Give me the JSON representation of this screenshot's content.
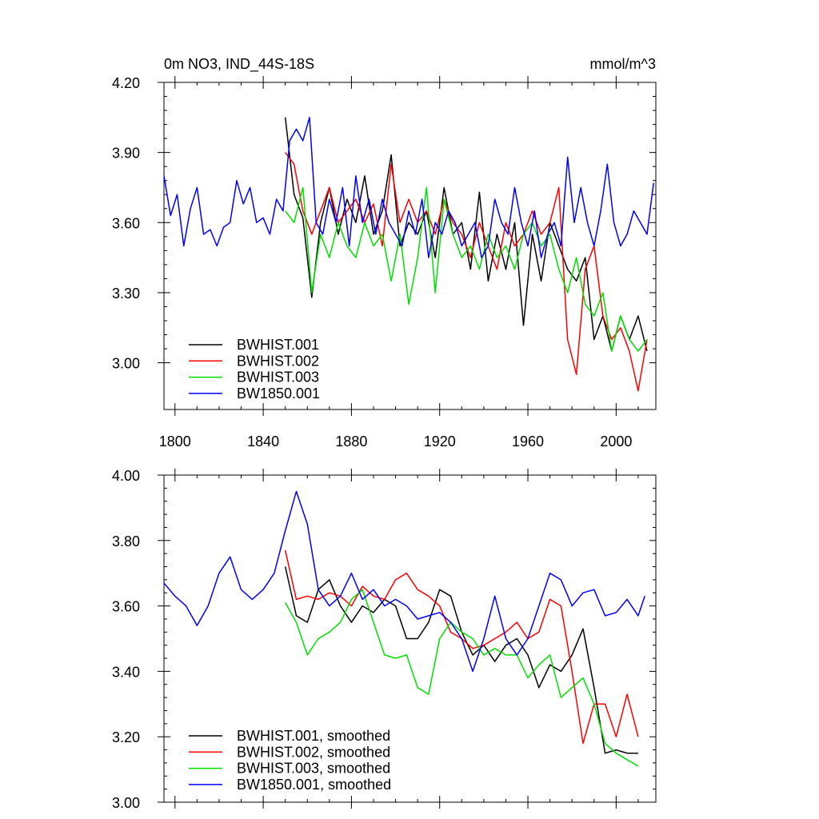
{
  "colors": {
    "BWHIST.001": "#000000",
    "BWHIST.002": "#ff0000",
    "BWHIST.003": "#00e000",
    "BW1850.001": "#0000ff"
  },
  "chart_data": [
    {
      "type": "line",
      "title": "0m NO3, IND_44S-18S",
      "units": "mmol/m^3",
      "xlim": [
        1795,
        2018
      ],
      "ylim": [
        2.8,
        4.2
      ],
      "xticks": [
        1800,
        1840,
        1880,
        1920,
        1960,
        2000
      ],
      "xtick_labels": [
        "1800",
        "1840",
        "1880",
        "1920",
        "1960",
        "2000"
      ],
      "yticks": [
        3.0,
        3.3,
        3.6,
        3.9,
        4.2
      ],
      "ytick_labels": [
        "3.00",
        "3.30",
        "3.60",
        "3.90",
        "4.20"
      ],
      "legend_position": "bottom-left",
      "series": [
        {
          "name": "BWHIST.001",
          "x": [
            1850,
            1854,
            1858,
            1862,
            1866,
            1870,
            1874,
            1878,
            1882,
            1886,
            1890,
            1894,
            1898,
            1902,
            1906,
            1910,
            1914,
            1918,
            1922,
            1926,
            1930,
            1934,
            1938,
            1942,
            1946,
            1950,
            1954,
            1958,
            1962,
            1966,
            1970,
            1974,
            1978,
            1982,
            1986,
            1990,
            1994,
            1998,
            2002,
            2006,
            2010,
            2014
          ],
          "y": [
            4.05,
            3.72,
            3.62,
            3.28,
            3.6,
            3.75,
            3.55,
            3.7,
            3.6,
            3.8,
            3.55,
            3.65,
            3.89,
            3.5,
            3.6,
            3.55,
            3.65,
            3.45,
            3.75,
            3.55,
            3.6,
            3.4,
            3.73,
            3.35,
            3.55,
            3.4,
            3.6,
            3.16,
            3.55,
            3.35,
            3.6,
            3.5,
            3.4,
            3.35,
            3.45,
            3.1,
            3.2,
            3.05,
            3.2,
            3.1,
            3.2,
            3.05
          ]
        },
        {
          "name": "BWHIST.002",
          "x": [
            1850,
            1854,
            1858,
            1862,
            1866,
            1870,
            1874,
            1878,
            1882,
            1886,
            1890,
            1894,
            1898,
            1902,
            1906,
            1910,
            1914,
            1918,
            1922,
            1926,
            1930,
            1934,
            1938,
            1942,
            1946,
            1950,
            1954,
            1958,
            1962,
            1966,
            1970,
            1974,
            1978,
            1982,
            1986,
            1990,
            1994,
            1998,
            2002,
            2006,
            2010,
            2014
          ],
          "y": [
            3.9,
            3.85,
            3.65,
            3.55,
            3.65,
            3.75,
            3.6,
            3.65,
            3.7,
            3.6,
            3.68,
            3.5,
            3.85,
            3.6,
            3.7,
            3.6,
            3.65,
            3.55,
            3.7,
            3.6,
            3.55,
            3.45,
            3.6,
            3.5,
            3.4,
            3.6,
            3.5,
            3.55,
            3.65,
            3.55,
            3.6,
            3.75,
            3.1,
            2.95,
            3.4,
            3.5,
            3.2,
            3.1,
            3.15,
            3.05,
            2.88,
            3.1
          ]
        },
        {
          "name": "BWHIST.003",
          "x": [
            1850,
            1854,
            1858,
            1862,
            1866,
            1870,
            1874,
            1878,
            1882,
            1886,
            1890,
            1894,
            1898,
            1902,
            1906,
            1910,
            1914,
            1918,
            1922,
            1926,
            1930,
            1934,
            1938,
            1942,
            1946,
            1950,
            1954,
            1958,
            1962,
            1966,
            1970,
            1974,
            1978,
            1982,
            1986,
            1990,
            1994,
            1998,
            2002,
            2006,
            2010,
            2014
          ],
          "y": [
            3.65,
            3.6,
            3.75,
            3.3,
            3.55,
            3.45,
            3.6,
            3.5,
            3.45,
            3.6,
            3.5,
            3.55,
            3.35,
            3.55,
            3.25,
            3.45,
            3.75,
            3.3,
            3.7,
            3.55,
            3.45,
            3.5,
            3.4,
            3.55,
            3.45,
            3.5,
            3.4,
            3.55,
            3.6,
            3.5,
            3.55,
            3.4,
            3.3,
            3.45,
            3.25,
            3.2,
            3.3,
            3.05,
            3.2,
            3.1,
            3.05,
            3.1
          ]
        },
        {
          "name": "BW1850.001",
          "x": [
            1795,
            1798,
            1801,
            1804,
            1807,
            1810,
            1813,
            1816,
            1819,
            1822,
            1825,
            1828,
            1831,
            1834,
            1837,
            1840,
            1843,
            1846,
            1849,
            1852,
            1855,
            1858,
            1861,
            1864,
            1867,
            1870,
            1873,
            1876,
            1879,
            1882,
            1885,
            1888,
            1891,
            1894,
            1897,
            1900,
            1903,
            1906,
            1909,
            1912,
            1915,
            1918,
            1921,
            1924,
            1927,
            1930,
            1933,
            1936,
            1939,
            1942,
            1945,
            1948,
            1951,
            1954,
            1957,
            1960,
            1963,
            1966,
            1969,
            1972,
            1975,
            1978,
            1981,
            1984,
            1987,
            1990,
            1993,
            1996,
            1999,
            2002,
            2005,
            2008,
            2011,
            2014,
            2017
          ],
          "y": [
            3.8,
            3.63,
            3.72,
            3.5,
            3.66,
            3.75,
            3.55,
            3.57,
            3.5,
            3.58,
            3.6,
            3.78,
            3.68,
            3.75,
            3.6,
            3.62,
            3.55,
            3.7,
            3.65,
            3.95,
            4.0,
            3.95,
            4.05,
            3.6,
            3.55,
            3.7,
            3.6,
            3.75,
            3.5,
            3.8,
            3.6,
            3.7,
            3.55,
            3.7,
            3.6,
            3.55,
            3.5,
            3.65,
            3.55,
            3.7,
            3.45,
            3.6,
            3.55,
            3.65,
            3.6,
            3.5,
            3.55,
            3.6,
            3.45,
            3.5,
            3.7,
            3.6,
            3.55,
            3.75,
            3.6,
            3.5,
            3.65,
            3.45,
            3.55,
            3.6,
            3.5,
            3.88,
            3.6,
            3.75,
            3.6,
            3.5,
            3.65,
            3.85,
            3.6,
            3.5,
            3.55,
            3.65,
            3.6,
            3.55,
            3.77
          ]
        }
      ]
    },
    {
      "type": "line",
      "xlim": [
        1795,
        2018
      ],
      "ylim": [
        3.0,
        4.0
      ],
      "xticks": [
        1800,
        1840,
        1880,
        1920,
        1960,
        2000
      ],
      "yticks": [
        3.0,
        3.2,
        3.4,
        3.6,
        3.8,
        4.0
      ],
      "ytick_labels": [
        "3.00",
        "3.20",
        "3.40",
        "3.60",
        "3.80",
        "4.00"
      ],
      "legend_position": "bottom-left",
      "series": [
        {
          "name": "BWHIST.001, smoothed",
          "x": [
            1850,
            1855,
            1860,
            1865,
            1870,
            1875,
            1880,
            1885,
            1890,
            1895,
            1900,
            1905,
            1910,
            1915,
            1920,
            1925,
            1930,
            1935,
            1940,
            1945,
            1950,
            1955,
            1960,
            1965,
            1970,
            1975,
            1980,
            1985,
            1990,
            1995,
            2000,
            2005,
            2010
          ],
          "y": [
            3.72,
            3.57,
            3.55,
            3.65,
            3.68,
            3.6,
            3.55,
            3.6,
            3.58,
            3.62,
            3.6,
            3.5,
            3.5,
            3.55,
            3.65,
            3.63,
            3.52,
            3.45,
            3.48,
            3.43,
            3.48,
            3.5,
            3.45,
            3.35,
            3.42,
            3.4,
            3.45,
            3.53,
            3.35,
            3.15,
            3.16,
            3.15,
            3.15
          ]
        },
        {
          "name": "BWHIST.002, smoothed",
          "x": [
            1850,
            1855,
            1860,
            1865,
            1870,
            1875,
            1880,
            1885,
            1890,
            1895,
            1900,
            1905,
            1910,
            1915,
            1920,
            1925,
            1930,
            1935,
            1940,
            1945,
            1950,
            1955,
            1960,
            1965,
            1970,
            1975,
            1980,
            1985,
            1990,
            1995,
            2000,
            2005,
            2010
          ],
          "y": [
            3.77,
            3.62,
            3.63,
            3.62,
            3.64,
            3.63,
            3.6,
            3.66,
            3.63,
            3.62,
            3.68,
            3.7,
            3.65,
            3.63,
            3.6,
            3.52,
            3.5,
            3.47,
            3.48,
            3.5,
            3.52,
            3.55,
            3.5,
            3.52,
            3.62,
            3.6,
            3.4,
            3.18,
            3.3,
            3.3,
            3.2,
            3.33,
            3.2
          ]
        },
        {
          "name": "BWHIST.003, smoothed",
          "x": [
            1850,
            1855,
            1860,
            1865,
            1870,
            1875,
            1880,
            1885,
            1890,
            1895,
            1900,
            1905,
            1910,
            1915,
            1920,
            1925,
            1930,
            1935,
            1940,
            1945,
            1950,
            1955,
            1960,
            1965,
            1970,
            1975,
            1980,
            1985,
            1990,
            1995,
            2000,
            2005,
            2010
          ],
          "y": [
            3.61,
            3.55,
            3.45,
            3.5,
            3.52,
            3.55,
            3.62,
            3.65,
            3.55,
            3.45,
            3.44,
            3.45,
            3.35,
            3.33,
            3.5,
            3.55,
            3.52,
            3.5,
            3.45,
            3.47,
            3.45,
            3.45,
            3.38,
            3.42,
            3.45,
            3.32,
            3.35,
            3.38,
            3.3,
            3.18,
            3.15,
            3.13,
            3.11
          ]
        },
        {
          "name": "BW1850.001, smoothed",
          "x": [
            1795,
            1800,
            1805,
            1810,
            1815,
            1820,
            1825,
            1830,
            1835,
            1840,
            1845,
            1850,
            1855,
            1860,
            1865,
            1870,
            1875,
            1880,
            1885,
            1890,
            1895,
            1900,
            1905,
            1910,
            1915,
            1920,
            1925,
            1930,
            1935,
            1940,
            1945,
            1950,
            1955,
            1960,
            1965,
            1970,
            1975,
            1980,
            1985,
            1990,
            1995,
            2000,
            2005,
            2010,
            2013
          ],
          "y": [
            3.67,
            3.63,
            3.6,
            3.54,
            3.6,
            3.7,
            3.75,
            3.65,
            3.62,
            3.65,
            3.7,
            3.83,
            3.95,
            3.85,
            3.65,
            3.6,
            3.63,
            3.7,
            3.62,
            3.65,
            3.6,
            3.62,
            3.6,
            3.56,
            3.57,
            3.58,
            3.55,
            3.5,
            3.4,
            3.5,
            3.63,
            3.5,
            3.45,
            3.5,
            3.6,
            3.7,
            3.68,
            3.6,
            3.64,
            3.65,
            3.57,
            3.58,
            3.62,
            3.57,
            3.63
          ]
        }
      ]
    }
  ]
}
